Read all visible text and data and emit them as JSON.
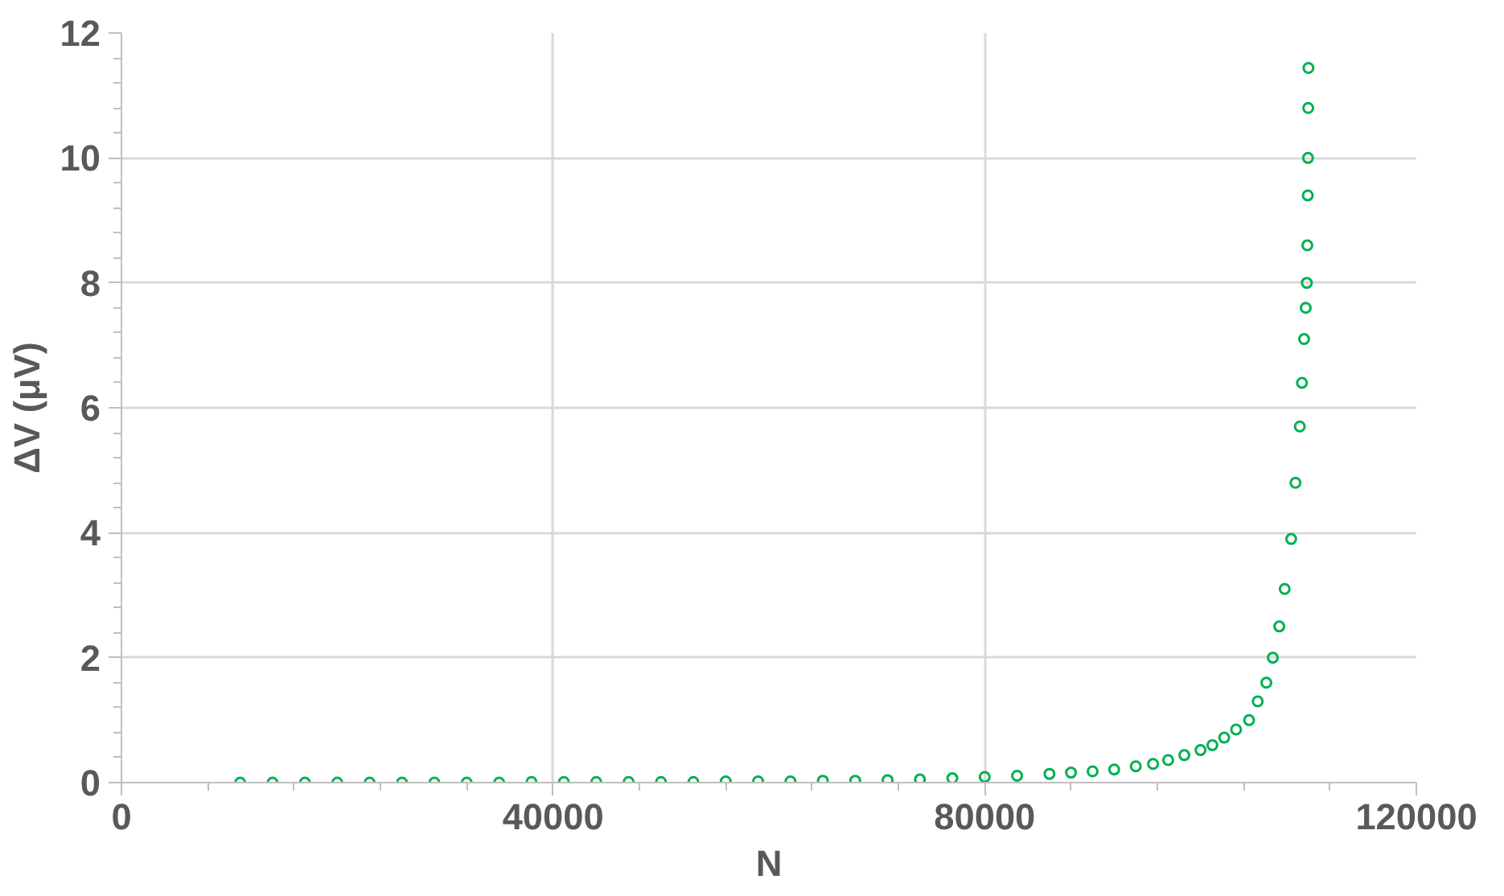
{
  "chart_data": {
    "type": "scatter",
    "xlabel": "N",
    "ylabel": "ΔV (μV)",
    "xlim": [
      0,
      120000
    ],
    "ylim": [
      0,
      12
    ],
    "xticks": [
      0,
      40000,
      80000,
      120000
    ],
    "yticks": [
      0,
      2,
      4,
      6,
      8,
      10,
      12
    ],
    "grid": true,
    "marker": "circle",
    "series": [
      {
        "color": "#00b050",
        "x": [
          11000,
          14000,
          17000,
          20000,
          23000,
          26000,
          29000,
          32000,
          35000,
          38000,
          41000,
          44000,
          47000,
          50000,
          53000,
          56000,
          59000,
          62000,
          65000,
          68000,
          71000,
          74000,
          77000,
          80000,
          83000,
          86000,
          88000,
          90000,
          92000,
          94000,
          95600,
          97000,
          98500,
          100000,
          101100,
          102200,
          103300,
          104500,
          105300,
          106100,
          106700,
          107300,
          107800,
          108400,
          108800,
          109200,
          109400,
          109600,
          109750,
          109850,
          109900,
          109940,
          109960,
          109980,
          110000
        ],
        "values": [
          0,
          0,
          0,
          0,
          0,
          0,
          0,
          0,
          0,
          0.01,
          0.01,
          0.01,
          0.01,
          0.01,
          0.01,
          0.02,
          0.02,
          0.02,
          0.03,
          0.03,
          0.04,
          0.05,
          0.07,
          0.09,
          0.11,
          0.14,
          0.16,
          0.18,
          0.21,
          0.26,
          0.3,
          0.36,
          0.44,
          0.52,
          0.6,
          0.72,
          0.85,
          1.0,
          1.3,
          1.6,
          2.0,
          2.5,
          3.1,
          3.9,
          4.8,
          5.7,
          6.4,
          7.1,
          7.6,
          8.0,
          8.6,
          9.4,
          10.0,
          10.8,
          11.44
        ]
      }
    ]
  }
}
